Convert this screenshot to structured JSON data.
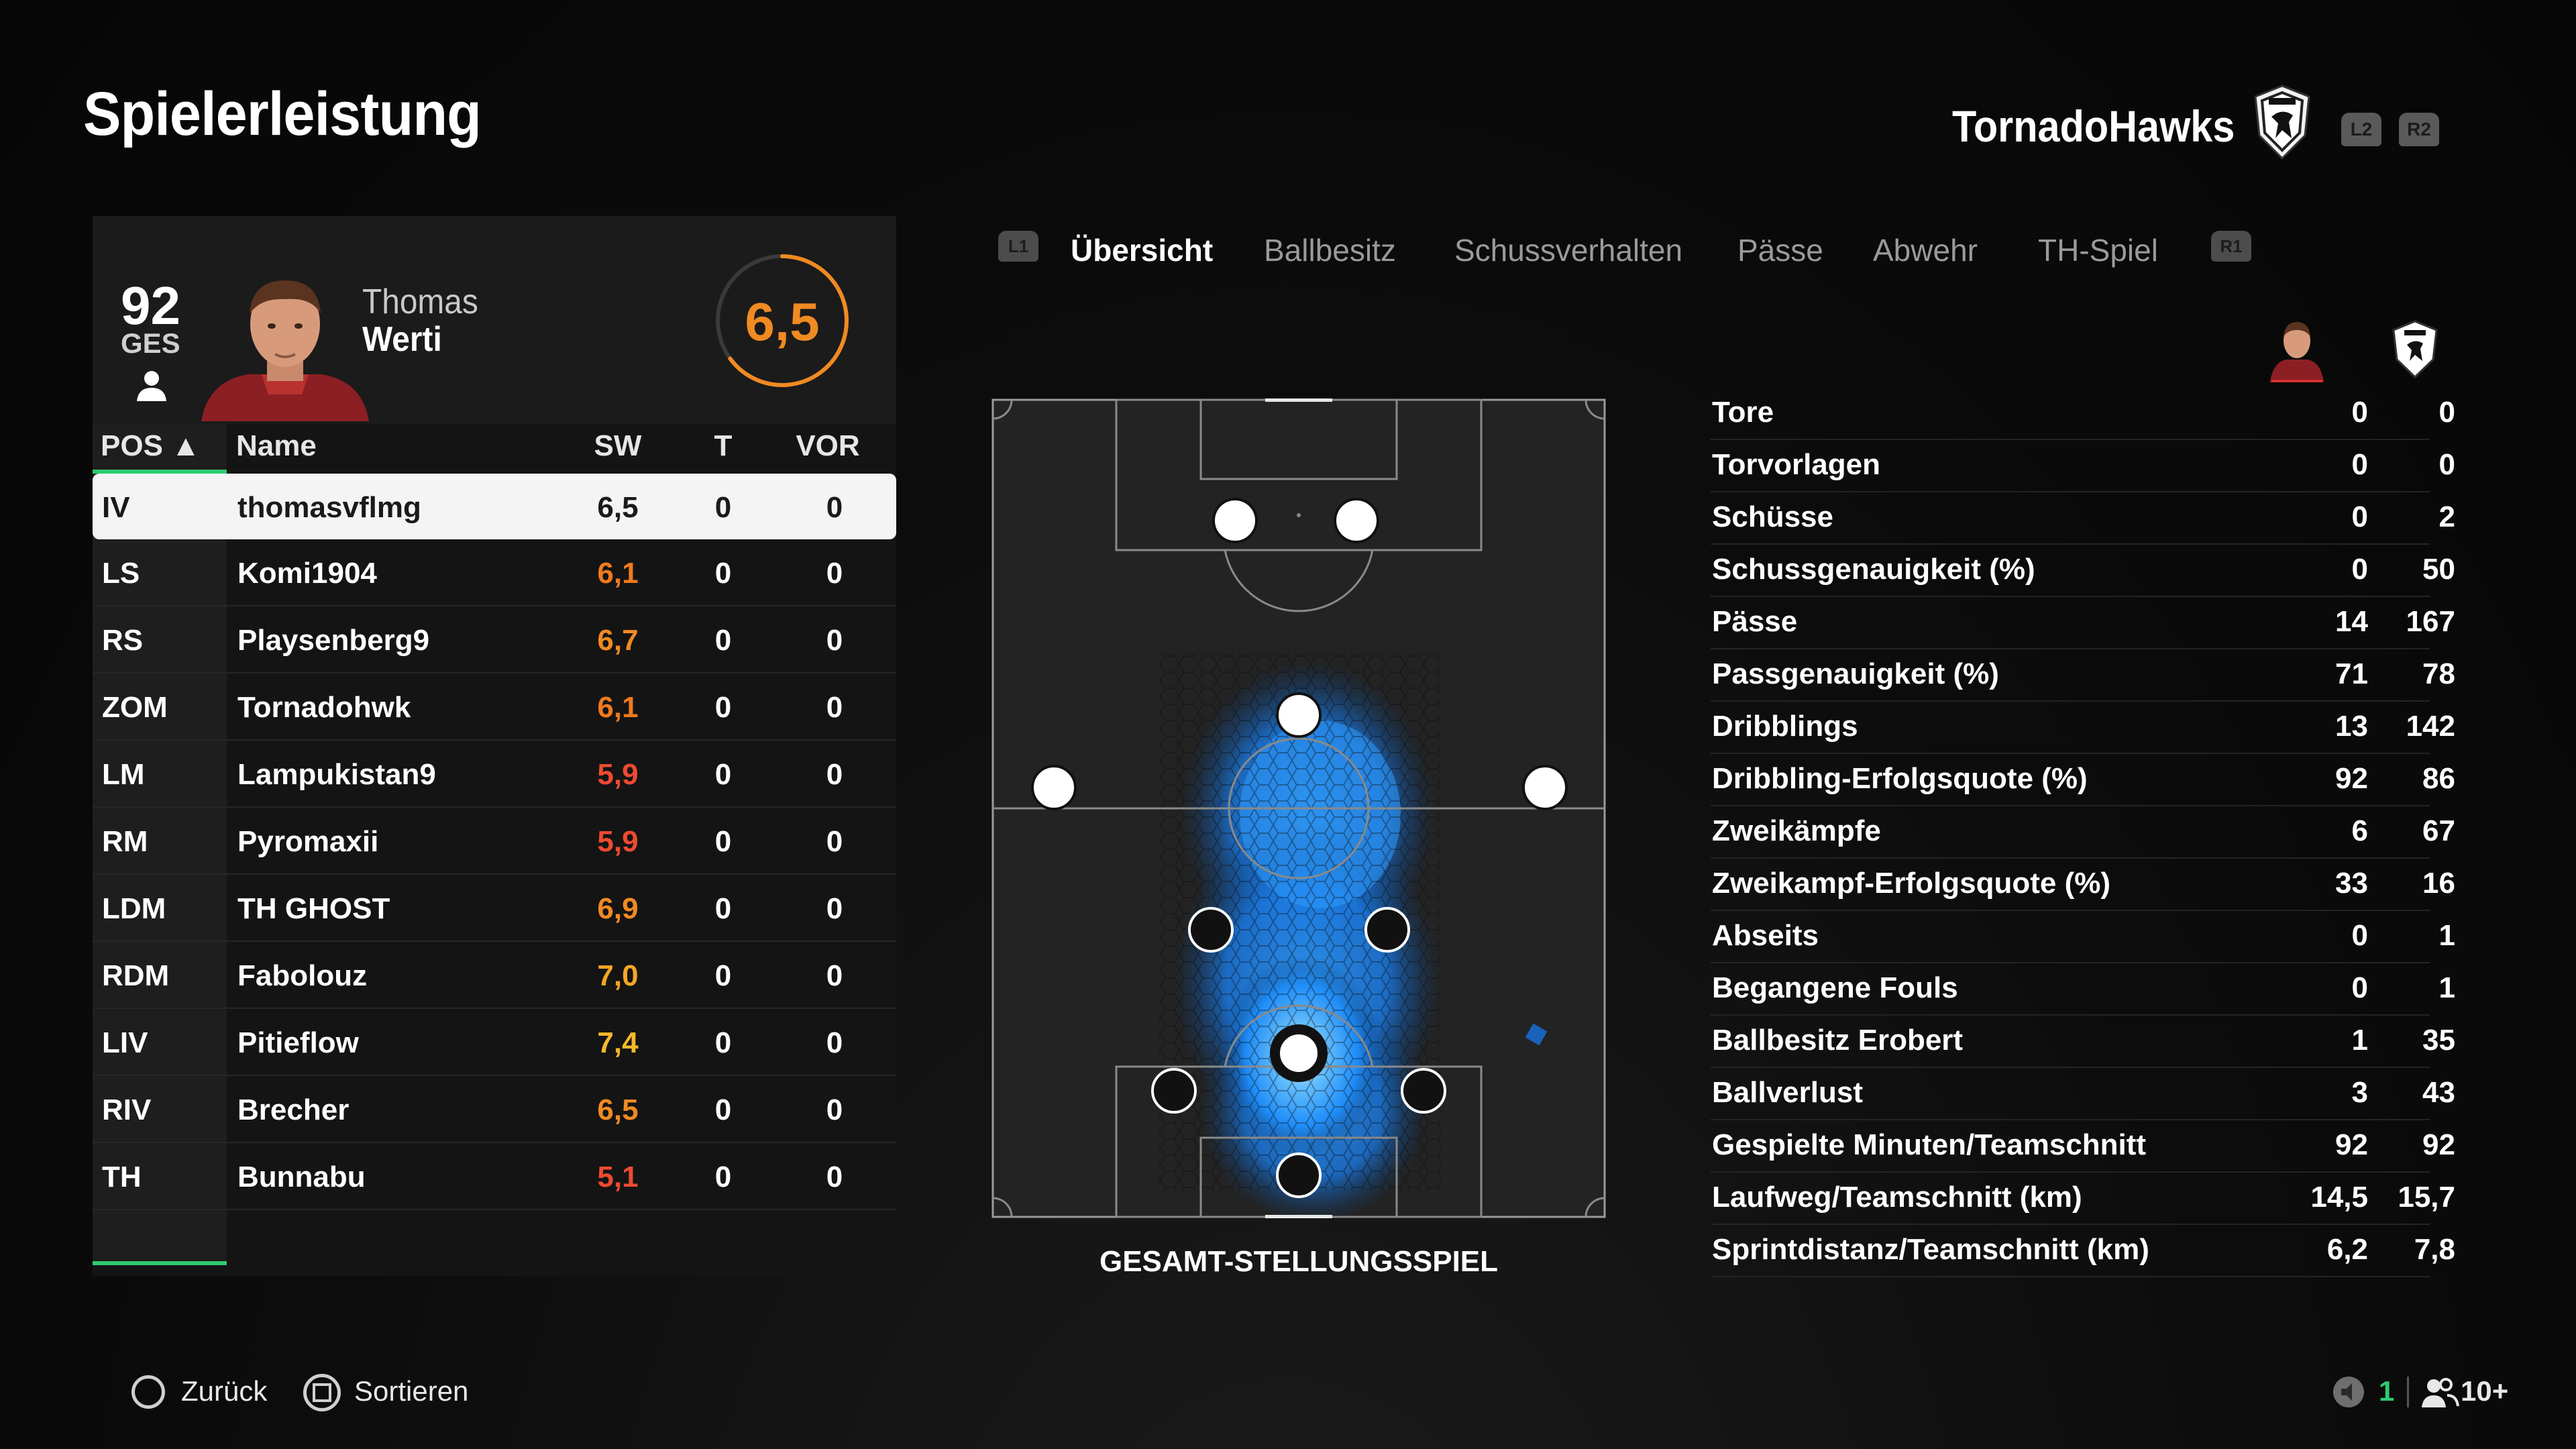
{
  "header": {
    "title": "Spielerleistung",
    "team_name": "TornadoHawks",
    "btn_left": "L2",
    "btn_right": "R2"
  },
  "player": {
    "overall": "92",
    "overall_label": "GES",
    "first_name": "Thomas",
    "last_name": "Werti",
    "rating": "6,5"
  },
  "table": {
    "columns": {
      "pos": "POS ▲",
      "name": "Name",
      "sw": "SW",
      "t": "T",
      "vor": "VOR"
    },
    "rows": [
      {
        "pos": "IV",
        "name": "thomasvflmg",
        "sw": "6,5",
        "t": "0",
        "vor": "0",
        "sw_color": "#1a1a1a"
      },
      {
        "pos": "LS",
        "name": "Komi1904",
        "sw": "6,1",
        "t": "0",
        "vor": "0",
        "sw_color": "#f07a1e"
      },
      {
        "pos": "RS",
        "name": "Playsenberg9",
        "sw": "6,7",
        "t": "0",
        "vor": "0",
        "sw_color": "#f08a22"
      },
      {
        "pos": "ZOM",
        "name": "Tornadohwk",
        "sw": "6,1",
        "t": "0",
        "vor": "0",
        "sw_color": "#f07a1e"
      },
      {
        "pos": "LM",
        "name": "Lampukistan9",
        "sw": "5,9",
        "t": "0",
        "vor": "0",
        "sw_color": "#ee4a30"
      },
      {
        "pos": "RM",
        "name": "Pyromaxii",
        "sw": "5,9",
        "t": "0",
        "vor": "0",
        "sw_color": "#ee4a30"
      },
      {
        "pos": "LDM",
        "name": "TH GHOST",
        "sw": "6,9",
        "t": "0",
        "vor": "0",
        "sw_color": "#f08a22"
      },
      {
        "pos": "RDM",
        "name": "Fabolouz",
        "sw": "7,0",
        "t": "0",
        "vor": "0",
        "sw_color": "#f5a623"
      },
      {
        "pos": "LIV",
        "name": "Pitieflow",
        "sw": "7,4",
        "t": "0",
        "vor": "0",
        "sw_color": "#f5b82a"
      },
      {
        "pos": "RIV",
        "name": "Brecher",
        "sw": "6,5",
        "t": "0",
        "vor": "0",
        "sw_color": "#f08a22"
      },
      {
        "pos": "TH",
        "name": "Bunnabu",
        "sw": "5,1",
        "t": "0",
        "vor": "0",
        "sw_color": "#ee4a30"
      }
    ]
  },
  "tabs": {
    "left_btn": "L1",
    "right_btn": "R1",
    "items": [
      "Übersicht",
      "Ballbesitz",
      "Schussverhalten",
      "Pässe",
      "Abwehr",
      "TH-Spiel"
    ]
  },
  "pitch": {
    "caption": "GESAMT-STELLUNGSSPIEL"
  },
  "stats": [
    {
      "label": "Tore",
      "player": "0",
      "team": "0"
    },
    {
      "label": "Torvorlagen",
      "player": "0",
      "team": "0"
    },
    {
      "label": "Schüsse",
      "player": "0",
      "team": "2"
    },
    {
      "label": "Schussgenauigkeit (%)",
      "player": "0",
      "team": "50"
    },
    {
      "label": "Pässe",
      "player": "14",
      "team": "167"
    },
    {
      "label": "Passgenauigkeit (%)",
      "player": "71",
      "team": "78"
    },
    {
      "label": "Dribblings",
      "player": "13",
      "team": "142"
    },
    {
      "label": "Dribbling-Erfolgsquote (%)",
      "player": "92",
      "team": "86"
    },
    {
      "label": "Zweikämpfe",
      "player": "6",
      "team": "67"
    },
    {
      "label": "Zweikampf-Erfolgsquote (%)",
      "player": "33",
      "team": "16"
    },
    {
      "label": "Abseits",
      "player": "0",
      "team": "1"
    },
    {
      "label": "Begangene Fouls",
      "player": "0",
      "team": "1"
    },
    {
      "label": "Ballbesitz Erobert",
      "player": "1",
      "team": "35"
    },
    {
      "label": "Ballverlust",
      "player": "3",
      "team": "43"
    },
    {
      "label": "Gespielte Minuten/Teamschnitt",
      "player": "92",
      "team": "92"
    },
    {
      "label": "Laufweg/Teamschnitt (km)",
      "player": "14,5",
      "team": "15,7"
    },
    {
      "label": "Sprintdistanz/Teamschnitt (km)",
      "player": "6,2",
      "team": "7,8"
    }
  ],
  "footer": {
    "back": "Zurück",
    "sort": "Sortieren",
    "count": "1",
    "players": "10+"
  },
  "colors": {
    "accent_green": "#2ecc71",
    "rating_orange": "#f08a22",
    "heatmap_blue": "#1e90ff"
  }
}
